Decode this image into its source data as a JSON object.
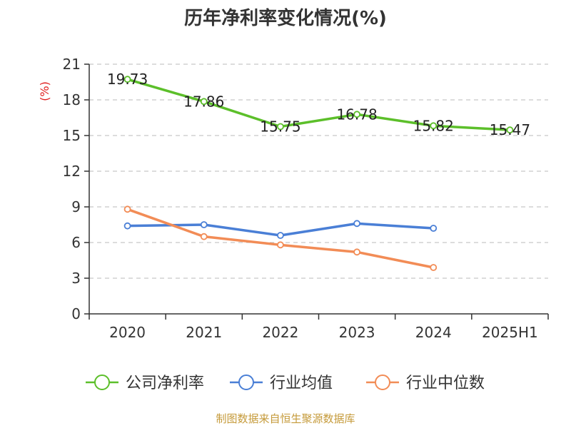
{
  "chart_data": {
    "type": "line",
    "title": "历年净利率变化情况(%)",
    "ylabel": "(%)",
    "xlabel": "",
    "categories": [
      "2020",
      "2021",
      "2022",
      "2023",
      "2024",
      "2025H1"
    ],
    "yticks": [
      "0",
      "3",
      "6",
      "9",
      "12",
      "15",
      "18",
      "21"
    ],
    "ylim": [
      0,
      21
    ],
    "grid": true,
    "legend_position": "bottom",
    "series": [
      {
        "name": "公司净利率",
        "color": "#5cbf2a",
        "values": [
          19.73,
          17.86,
          15.75,
          16.78,
          15.82,
          15.47
        ],
        "labels": [
          "19.73",
          "17.86",
          "15.75",
          "16.78",
          "15.82",
          "15.47"
        ]
      },
      {
        "name": "行业均值",
        "color": "#4a7fd6",
        "values": [
          7.4,
          7.5,
          6.6,
          7.6,
          7.2,
          null
        ]
      },
      {
        "name": "行业中位数",
        "color": "#f28c56",
        "values": [
          8.8,
          6.5,
          5.8,
          5.2,
          3.9,
          null
        ]
      }
    ]
  },
  "source": "制图数据来自恒生聚源数据库"
}
